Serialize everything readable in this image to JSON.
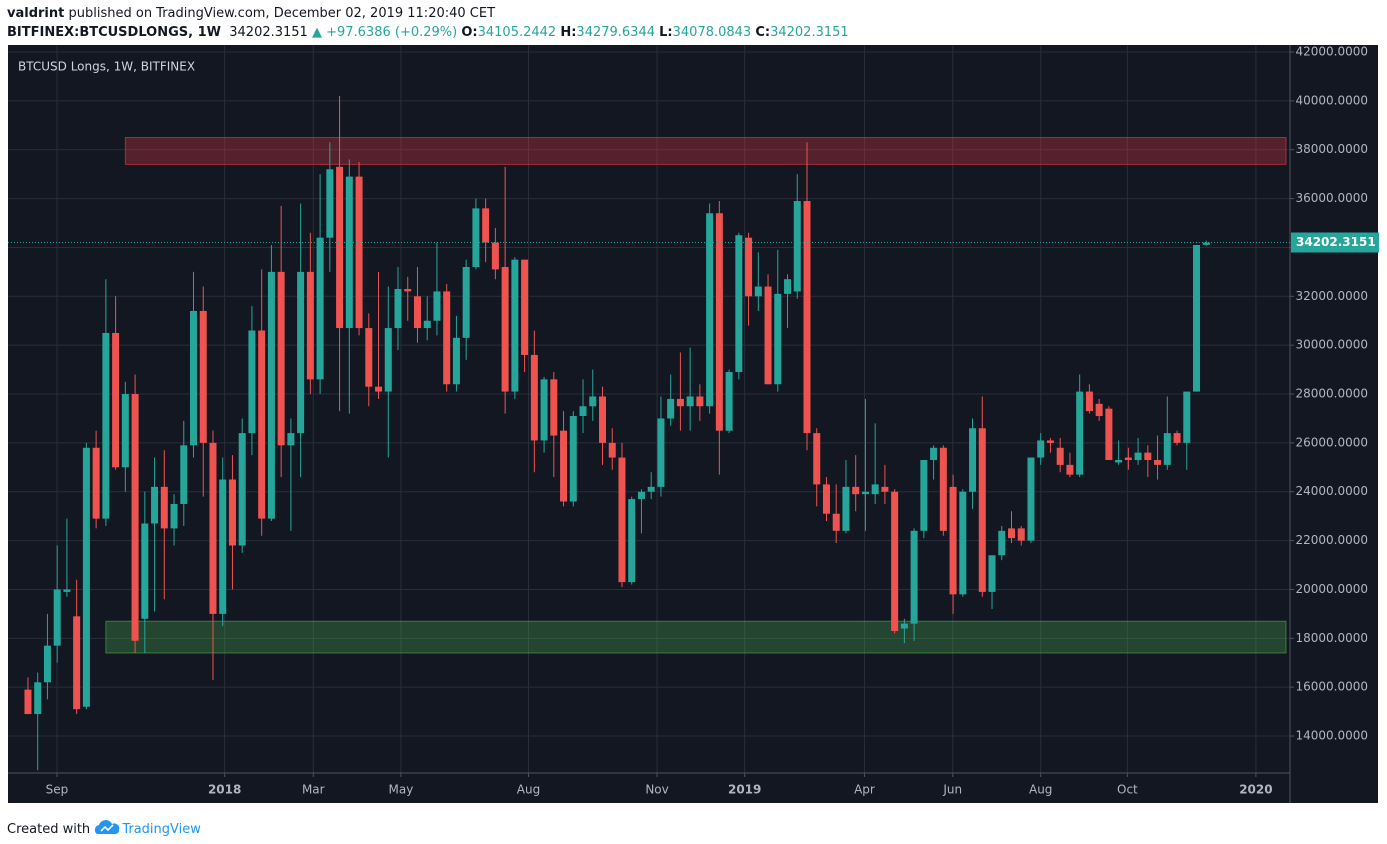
{
  "chart_data": {
    "type": "candlestick",
    "author": "valdrint",
    "published": "published on TradingView.com, December 02, 2019 11:20:40 CET",
    "symbol": "BITFINEX:BTCUSDLONGS, 1W",
    "change": "▲ +97.6386 (+0.29%)",
    "ohlc_labels": [
      "O:",
      "H:",
      "L:",
      "C:"
    ],
    "title": "BTCUSD Longs, 1W, BITFINEX",
    "footer": "Created with",
    "brand": "TradingView",
    "up_color": "#26a69a",
    "down_color": "#ef5350",
    "grid": true,
    "ylim": [
      12487,
      42287
    ],
    "yticks": [
      {
        "value": 14000,
        "label": "14000.0000"
      },
      {
        "value": 16000,
        "label": "16000.0000"
      },
      {
        "value": 18000,
        "label": "18000.0000"
      },
      {
        "value": 20000,
        "label": "20000.0000"
      },
      {
        "value": 22000,
        "label": "22000.0000"
      },
      {
        "value": 24000,
        "label": "24000.0000"
      },
      {
        "value": 26000,
        "label": "26000.0000"
      },
      {
        "value": 28000,
        "label": "28000.0000"
      },
      {
        "value": 30000,
        "label": "30000.0000"
      },
      {
        "value": 32000,
        "label": "32000.0000"
      },
      {
        "value": 34000,
        "label": "34000.0000"
      },
      {
        "value": 36000,
        "label": "36000.0000"
      },
      {
        "value": 38000,
        "label": "38000.0000"
      },
      {
        "value": 40000,
        "label": "40000.0000"
      },
      {
        "value": 42000,
        "label": "42000.0000"
      }
    ],
    "xlim": [
      -2.05,
      129.6
    ],
    "xticks": [
      {
        "value": 2.98,
        "label": "Sep"
      },
      {
        "value": 20.2,
        "label": "2018"
      },
      {
        "value": 29.3,
        "label": "Mar"
      },
      {
        "value": 38.3,
        "label": "May"
      },
      {
        "value": 51.4,
        "label": "Aug"
      },
      {
        "value": 64.6,
        "label": "Nov"
      },
      {
        "value": 73.6,
        "label": "2019"
      },
      {
        "value": 85.9,
        "label": "Apr"
      },
      {
        "value": 94.97,
        "label": "Jun"
      },
      {
        "value": 104.0,
        "label": "Aug"
      },
      {
        "value": 112.9,
        "label": "Oct"
      },
      {
        "value": 126.1,
        "label": "2020"
      }
    ],
    "zones": [
      {
        "from": 37400,
        "to": 38500,
        "x_start": 10,
        "color": "#f23645"
      },
      {
        "from": 17400,
        "to": 18700,
        "x_start": 8,
        "color": "#4caf50"
      }
    ],
    "ohlc": [
      [
        15900,
        16400,
        14900,
        14900
      ],
      [
        14900,
        16600,
        12600,
        16200
      ],
      [
        16200,
        19000,
        15500,
        17700
      ],
      [
        17700,
        21800,
        17000,
        20000
      ],
      [
        19900,
        22900,
        19700,
        20000
      ],
      [
        18900,
        20400,
        14900,
        15100
      ],
      [
        15200,
        26000,
        15100,
        25800
      ],
      [
        25800,
        26500,
        22500,
        22900
      ],
      [
        22900,
        32700,
        22600,
        30500
      ],
      [
        30500,
        32000,
        24900,
        25000
      ],
      [
        25000,
        28500,
        24000,
        28000
      ],
      [
        28000,
        28800,
        17400,
        17900
      ],
      [
        18800,
        24000,
        17400,
        22700
      ],
      [
        22700,
        25400,
        19100,
        24200
      ],
      [
        24200,
        25700,
        19600,
        22500
      ],
      [
        22500,
        23900,
        21800,
        23500
      ],
      [
        23500,
        26900,
        22600,
        25900
      ],
      [
        25900,
        33000,
        25400,
        31400
      ],
      [
        31400,
        32400,
        23800,
        26000
      ],
      [
        26000,
        26500,
        16300,
        19000
      ],
      [
        19000,
        25400,
        18500,
        24500
      ],
      [
        24500,
        25500,
        20000,
        21800
      ],
      [
        21800,
        27000,
        21500,
        26400
      ],
      [
        26400,
        31600,
        25500,
        30600
      ],
      [
        30600,
        33100,
        22200,
        22900
      ],
      [
        22900,
        34100,
        22800,
        33000
      ],
      [
        33000,
        35700,
        24600,
        25900
      ],
      [
        25900,
        27000,
        22400,
        26400
      ],
      [
        26400,
        35800,
        24600,
        33000
      ],
      [
        33000,
        34600,
        28000,
        28600
      ],
      [
        28600,
        37000,
        28000,
        34400
      ],
      [
        34400,
        38300,
        33000,
        37200
      ],
      [
        37300,
        40200,
        27300,
        30700
      ],
      [
        30700,
        37600,
        27200,
        36900
      ],
      [
        36900,
        37500,
        30400,
        30700
      ],
      [
        30700,
        31300,
        27500,
        28300
      ],
      [
        28300,
        33000,
        27800,
        28100
      ],
      [
        28100,
        32400,
        25400,
        30700
      ],
      [
        30700,
        33200,
        29800,
        32300
      ],
      [
        32300,
        32800,
        31000,
        32200
      ],
      [
        32000,
        33200,
        30100,
        30700
      ],
      [
        30700,
        32000,
        30200,
        31000
      ],
      [
        31000,
        34200,
        30400,
        32200
      ],
      [
        32200,
        32500,
        28100,
        28400
      ],
      [
        28400,
        31200,
        28100,
        30300
      ],
      [
        30300,
        33500,
        29400,
        33200
      ],
      [
        33200,
        36000,
        33100,
        35600
      ],
      [
        35600,
        36000,
        33400,
        34200
      ],
      [
        34200,
        34800,
        32700,
        33100
      ],
      [
        33200,
        37300,
        27200,
        28100
      ],
      [
        28100,
        33600,
        27800,
        33500
      ],
      [
        33500,
        33500,
        28900,
        29600
      ],
      [
        29600,
        30600,
        24800,
        26100
      ],
      [
        26100,
        28700,
        25600,
        28600
      ],
      [
        28600,
        28900,
        24600,
        26300
      ],
      [
        26500,
        27300,
        23400,
        23600
      ],
      [
        23600,
        27300,
        23400,
        27100
      ],
      [
        27100,
        28600,
        26400,
        27500
      ],
      [
        27500,
        29000,
        26900,
        27900
      ],
      [
        27900,
        28300,
        25100,
        26000
      ],
      [
        26000,
        26600,
        24900,
        25400
      ],
      [
        25400,
        26000,
        20100,
        20300
      ],
      [
        20300,
        23800,
        20200,
        23700
      ],
      [
        23700,
        24100,
        22300,
        24000
      ],
      [
        24000,
        24800,
        23700,
        24200
      ],
      [
        24200,
        27900,
        23800,
        27000
      ],
      [
        27000,
        28800,
        26700,
        27800
      ],
      [
        27800,
        29700,
        26500,
        27500
      ],
      [
        27500,
        29900,
        26500,
        27900
      ],
      [
        27900,
        28400,
        26900,
        27500
      ],
      [
        27500,
        35800,
        27200,
        35400
      ],
      [
        35400,
        35900,
        24700,
        26500
      ],
      [
        26500,
        29000,
        26400,
        28900
      ],
      [
        28900,
        34600,
        28600,
        34500
      ],
      [
        34400,
        34600,
        30800,
        32000
      ],
      [
        32000,
        33800,
        31400,
        32400
      ],
      [
        32400,
        32900,
        28400,
        28400
      ],
      [
        28400,
        33900,
        28100,
        32100
      ],
      [
        32100,
        32900,
        30700,
        32700
      ],
      [
        32200,
        37000,
        31900,
        35900
      ],
      [
        35900,
        38300,
        25700,
        26400
      ],
      [
        26400,
        26600,
        23400,
        24300
      ],
      [
        24300,
        24600,
        22800,
        23100
      ],
      [
        23100,
        24300,
        21900,
        22400
      ],
      [
        22400,
        25300,
        22300,
        24200
      ],
      [
        24200,
        25500,
        23200,
        23900
      ],
      [
        23900,
        27800,
        22400,
        24000
      ],
      [
        23900,
        26800,
        23500,
        24300
      ],
      [
        24200,
        25100,
        23500,
        24000
      ],
      [
        24000,
        24100,
        18200,
        18300
      ],
      [
        18400,
        18800,
        17800,
        18600
      ],
      [
        18600,
        22500,
        17900,
        22400
      ],
      [
        22400,
        25300,
        22100,
        25300
      ],
      [
        25300,
        25900,
        24500,
        25800
      ],
      [
        25800,
        25900,
        22200,
        22400
      ],
      [
        24200,
        24700,
        19000,
        19800
      ],
      [
        19800,
        24100,
        19700,
        24000
      ],
      [
        24000,
        27000,
        23300,
        26600
      ],
      [
        26600,
        27900,
        19700,
        19900
      ],
      [
        19900,
        21400,
        19200,
        21400
      ],
      [
        21400,
        22600,
        21200,
        22400
      ],
      [
        22500,
        23200,
        21900,
        22100
      ],
      [
        22500,
        22600,
        21800,
        22000
      ],
      [
        22000,
        25400,
        21900,
        25400
      ],
      [
        25400,
        26400,
        25100,
        26100
      ],
      [
        26100,
        26200,
        25600,
        26000
      ],
      [
        25800,
        26200,
        24800,
        25100
      ],
      [
        25100,
        25600,
        24600,
        24700
      ],
      [
        24700,
        28800,
        24600,
        28100
      ],
      [
        28100,
        28400,
        27200,
        27300
      ],
      [
        27600,
        27800,
        26900,
        27100
      ],
      [
        27400,
        27500,
        25300,
        25300
      ],
      [
        25200,
        26100,
        25100,
        25300
      ],
      [
        25400,
        25800,
        24900,
        25300
      ],
      [
        25300,
        26200,
        25100,
        25600
      ],
      [
        25600,
        25900,
        24600,
        25300
      ],
      [
        25300,
        26300,
        24500,
        25100
      ],
      [
        25100,
        27900,
        24900,
        26400
      ],
      [
        26400,
        26500,
        25900,
        26000
      ],
      [
        26000,
        28100,
        24900,
        28100
      ],
      [
        28100,
        34100,
        28100,
        34100
      ],
      [
        34105.2442,
        34279.6344,
        34078.0843,
        34202.3151
      ]
    ]
  }
}
